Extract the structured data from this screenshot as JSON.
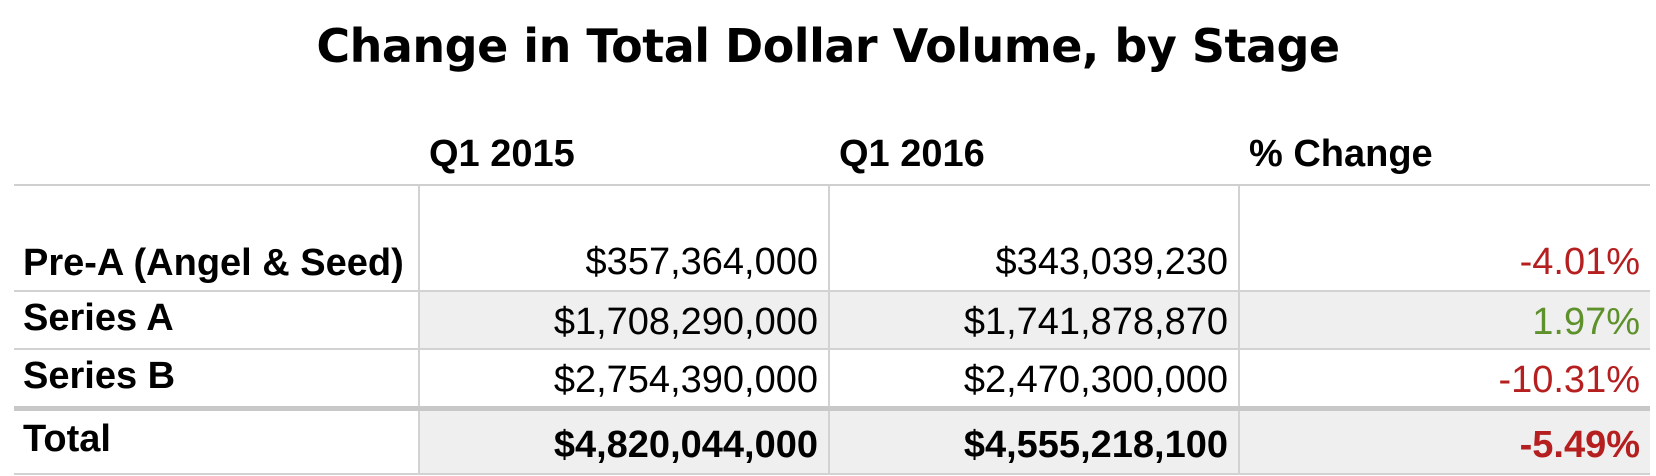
{
  "chart_data": {
    "type": "table",
    "title": "Change in Total Dollar Volume, by Stage",
    "columns": [
      "",
      "Q1 2015",
      "Q1 2016",
      "% Change"
    ],
    "rows": [
      {
        "label": "Pre-A (Angel & Seed)",
        "q1_2015": "$357,364,000",
        "q1_2016": "$343,039,230",
        "pct_change": "-4.01%"
      },
      {
        "label": "Series A",
        "q1_2015": "$1,708,290,000",
        "q1_2016": "$1,741,878,870",
        "pct_change": "1.97%"
      },
      {
        "label": "Series B",
        "q1_2015": "$2,754,390,000",
        "q1_2016": "$2,470,300,000",
        "pct_change": "-10.31%"
      },
      {
        "label": "Total",
        "q1_2015": "$4,820,044,000",
        "q1_2016": "$4,555,218,100",
        "pct_change": "-5.49%"
      }
    ],
    "values": {
      "q1_2015": [
        357364000,
        1708290000,
        2754390000,
        4820044000
      ],
      "q1_2016": [
        343039230,
        1741878870,
        2470300000,
        4555218100
      ],
      "pct_change": [
        -4.01,
        1.97,
        -10.31,
        -5.49
      ]
    },
    "colors": {
      "negative": "#b51f1f",
      "positive": "#5e912c",
      "row_shade": "#efefef",
      "grid": "#d2d2d2"
    }
  }
}
